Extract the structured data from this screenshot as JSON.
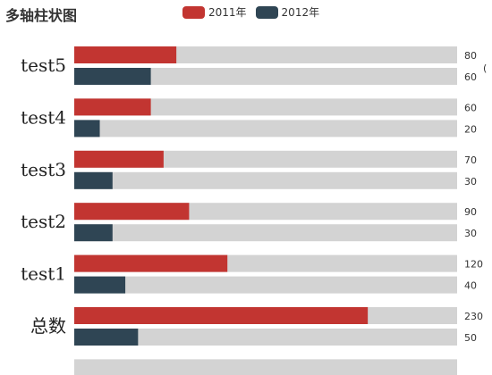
{
  "chart_data": {
    "type": "bar",
    "orientation": "horizontal",
    "title": "多轴柱状图",
    "categories": [
      "test5",
      "test4",
      "test3",
      "test2",
      "test1",
      "总数"
    ],
    "series": [
      {
        "name": "2011年",
        "color": "#c23531",
        "values": [
          80,
          60,
          70,
          90,
          120,
          230
        ]
      },
      {
        "name": "2012年",
        "color": "#2f4554",
        "values": [
          60,
          20,
          30,
          30,
          40,
          50
        ]
      }
    ],
    "background_bar_color": "#d3d3d3",
    "xlim": [
      0,
      300
    ],
    "y_axis_name": "(",
    "legend_position": "top",
    "grid": false
  }
}
